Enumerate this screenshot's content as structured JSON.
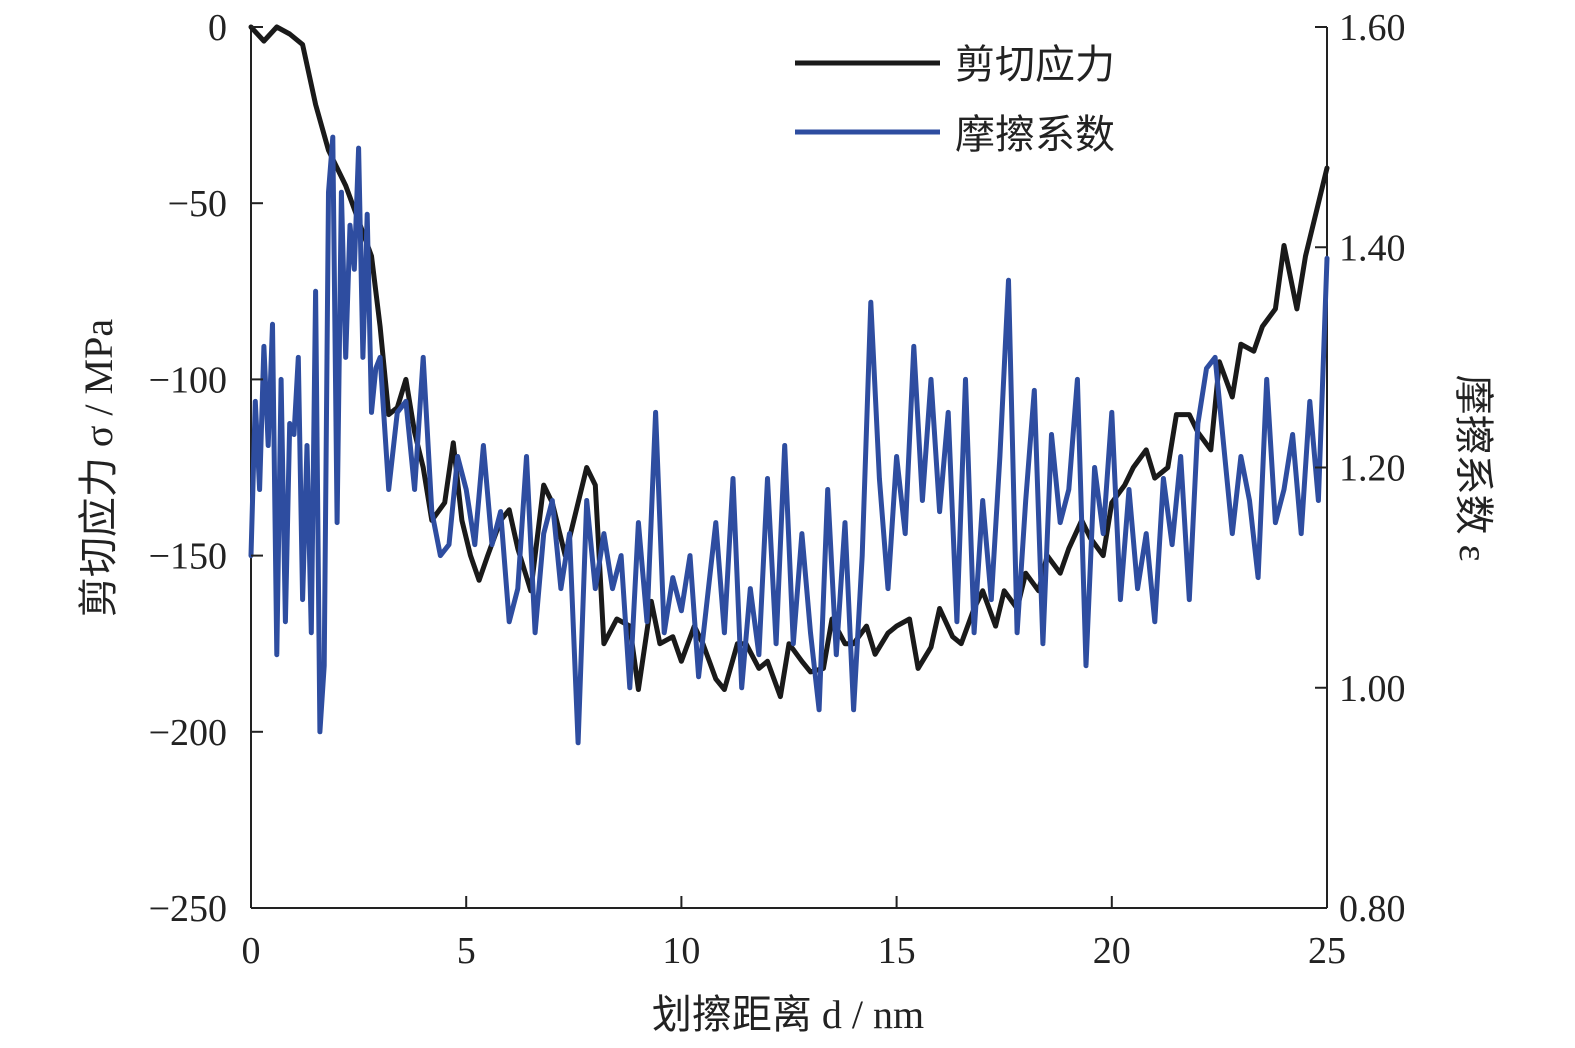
{
  "chart_data": {
    "type": "line",
    "xlabel": "划擦距离 d / nm",
    "ylabel_left": "剪切应力 σ / MPa",
    "ylabel_right": "摩擦系数 ε",
    "xlim": [
      0,
      25
    ],
    "ylim_left": [
      -250,
      0
    ],
    "ylim_right": [
      0.8,
      1.6
    ],
    "x_ticks": [
      "0",
      "5",
      "10",
      "15",
      "20",
      "25"
    ],
    "y_left_ticks": [
      "0",
      "−50",
      "−100",
      "−150",
      "−200",
      "−250"
    ],
    "y_right_ticks": [
      "1.60",
      "1.40",
      "1.20",
      "1.00",
      "0.80"
    ],
    "grid": false,
    "legend_position": "top-right",
    "series": [
      {
        "name": "剪切应力",
        "axis": "left",
        "color": "#1a1a1a",
        "x": [
          0,
          0.3,
          0.6,
          0.9,
          1.2,
          1.5,
          1.8,
          2.0,
          2.2,
          2.5,
          2.8,
          3.0,
          3.2,
          3.4,
          3.6,
          3.8,
          4.0,
          4.2,
          4.5,
          4.7,
          4.9,
          5.1,
          5.3,
          5.5,
          5.8,
          6.0,
          6.2,
          6.5,
          6.8,
          7.0,
          7.3,
          7.5,
          7.8,
          8.0,
          8.2,
          8.5,
          8.8,
          9.0,
          9.3,
          9.5,
          9.8,
          10.0,
          10.3,
          10.5,
          10.8,
          11.0,
          11.3,
          11.5,
          11.8,
          12.0,
          12.3,
          12.5,
          12.8,
          13.0,
          13.3,
          13.5,
          13.8,
          14.0,
          14.3,
          14.5,
          14.8,
          15.0,
          15.3,
          15.5,
          15.8,
          16.0,
          16.3,
          16.5,
          16.8,
          17.0,
          17.3,
          17.5,
          17.8,
          18.0,
          18.3,
          18.5,
          18.8,
          19.0,
          19.3,
          19.5,
          19.8,
          20.0,
          20.3,
          20.5,
          20.8,
          21.0,
          21.3,
          21.5,
          21.8,
          22.0,
          22.3,
          22.5,
          22.8,
          23.0,
          23.3,
          23.5,
          23.8,
          24.0,
          24.3,
          24.5,
          24.8,
          25.0
        ],
        "values": [
          0,
          -4,
          0,
          -2,
          -5,
          -22,
          -35,
          -40,
          -45,
          -55,
          -65,
          -85,
          -110,
          -108,
          -100,
          -115,
          -125,
          -140,
          -135,
          -118,
          -140,
          -150,
          -157,
          -150,
          -140,
          -137,
          -148,
          -160,
          -130,
          -135,
          -150,
          -140,
          -125,
          -130,
          -175,
          -168,
          -170,
          -188,
          -163,
          -175,
          -173,
          -180,
          -170,
          -175,
          -185,
          -188,
          -175,
          -175,
          -182,
          -180,
          -190,
          -175,
          -180,
          -183,
          -182,
          -168,
          -175,
          -175,
          -170,
          -178,
          -172,
          -170,
          -168,
          -182,
          -176,
          -165,
          -173,
          -175,
          -165,
          -160,
          -170,
          -160,
          -165,
          -155,
          -160,
          -150,
          -155,
          -148,
          -140,
          -145,
          -150,
          -135,
          -130,
          -125,
          -120,
          -128,
          -125,
          -110,
          -110,
          -115,
          -120,
          -95,
          -105,
          -90,
          -92,
          -85,
          -80,
          -62,
          -80,
          -65,
          -50,
          -40
        ]
      },
      {
        "name": "摩擦系数",
        "axis": "right",
        "color": "#2e4da0",
        "x": [
          0.0,
          0.1,
          0.2,
          0.3,
          0.4,
          0.5,
          0.6,
          0.7,
          0.8,
          0.9,
          1.0,
          1.1,
          1.2,
          1.3,
          1.4,
          1.5,
          1.6,
          1.7,
          1.8,
          1.9,
          2.0,
          2.1,
          2.2,
          2.3,
          2.4,
          2.5,
          2.6,
          2.7,
          2.8,
          2.9,
          3.0,
          3.2,
          3.4,
          3.6,
          3.8,
          4.0,
          4.2,
          4.4,
          4.6,
          4.8,
          5.0,
          5.2,
          5.4,
          5.6,
          5.8,
          6.0,
          6.2,
          6.4,
          6.6,
          6.8,
          7.0,
          7.2,
          7.4,
          7.6,
          7.8,
          8.0,
          8.2,
          8.4,
          8.6,
          8.8,
          9.0,
          9.2,
          9.4,
          9.6,
          9.8,
          10.0,
          10.2,
          10.4,
          10.6,
          10.8,
          11.0,
          11.2,
          11.4,
          11.6,
          11.8,
          12.0,
          12.2,
          12.4,
          12.6,
          12.8,
          13.0,
          13.2,
          13.4,
          13.6,
          13.8,
          14.0,
          14.2,
          14.4,
          14.6,
          14.8,
          15.0,
          15.2,
          15.4,
          15.6,
          15.8,
          16.0,
          16.2,
          16.4,
          16.6,
          16.8,
          17.0,
          17.2,
          17.4,
          17.6,
          17.8,
          18.0,
          18.2,
          18.4,
          18.6,
          18.8,
          19.0,
          19.2,
          19.4,
          19.6,
          19.8,
          20.0,
          20.2,
          20.4,
          20.6,
          20.8,
          21.0,
          21.2,
          21.4,
          21.6,
          21.8,
          22.0,
          22.2,
          22.4,
          22.6,
          22.8,
          23.0,
          23.2,
          23.4,
          23.6,
          23.8,
          24.0,
          24.2,
          24.4,
          24.6,
          24.8,
          25.0
        ],
        "values": [
          1.12,
          1.26,
          1.18,
          1.31,
          1.22,
          1.33,
          1.03,
          1.28,
          1.06,
          1.24,
          1.23,
          1.3,
          1.08,
          1.22,
          1.05,
          1.36,
          0.96,
          1.02,
          1.45,
          1.5,
          1.15,
          1.45,
          1.3,
          1.42,
          1.38,
          1.49,
          1.3,
          1.43,
          1.25,
          1.29,
          1.3,
          1.18,
          1.25,
          1.26,
          1.18,
          1.3,
          1.16,
          1.12,
          1.13,
          1.21,
          1.18,
          1.13,
          1.22,
          1.13,
          1.16,
          1.06,
          1.09,
          1.21,
          1.05,
          1.14,
          1.17,
          1.09,
          1.14,
          0.95,
          1.17,
          1.09,
          1.14,
          1.09,
          1.12,
          1.0,
          1.15,
          1.06,
          1.25,
          1.05,
          1.1,
          1.07,
          1.12,
          1.01,
          1.08,
          1.15,
          1.05,
          1.19,
          1.0,
          1.09,
          1.03,
          1.19,
          1.04,
          1.22,
          1.04,
          1.14,
          1.05,
          0.98,
          1.18,
          1.03,
          1.15,
          0.98,
          1.12,
          1.35,
          1.19,
          1.09,
          1.21,
          1.14,
          1.31,
          1.17,
          1.28,
          1.16,
          1.25,
          1.06,
          1.28,
          1.05,
          1.17,
          1.08,
          1.21,
          1.37,
          1.05,
          1.17,
          1.27,
          1.04,
          1.23,
          1.15,
          1.18,
          1.28,
          1.02,
          1.2,
          1.14,
          1.25,
          1.08,
          1.18,
          1.09,
          1.14,
          1.06,
          1.19,
          1.13,
          1.21,
          1.08,
          1.24,
          1.29,
          1.3,
          1.22,
          1.14,
          1.21,
          1.17,
          1.1,
          1.28,
          1.15,
          1.18,
          1.23,
          1.14,
          1.26,
          1.17,
          1.39
        ]
      }
    ]
  }
}
